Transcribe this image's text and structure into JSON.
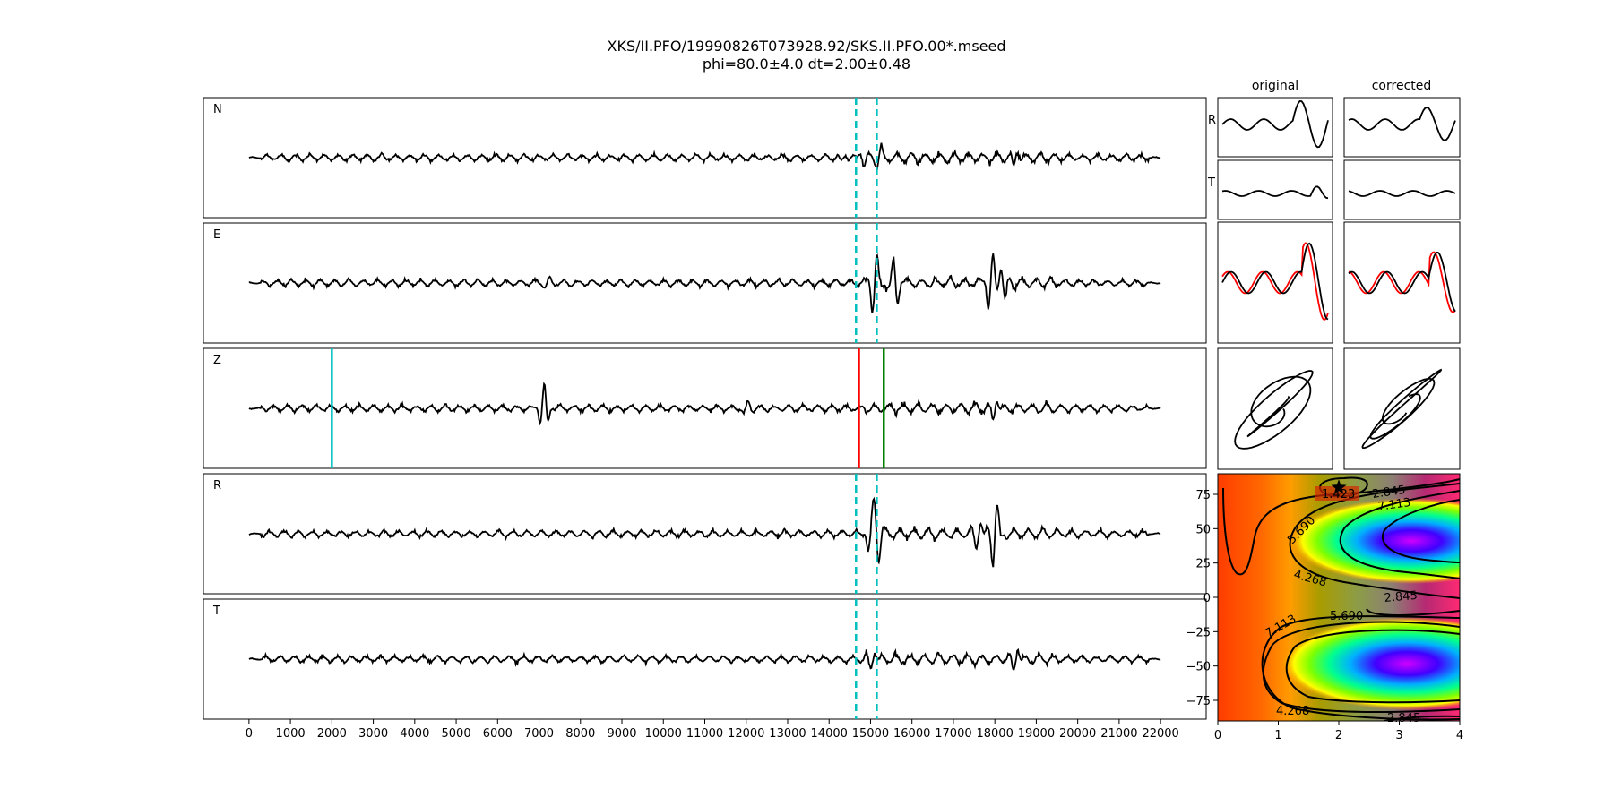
{
  "chart_data": {
    "type": "line",
    "title": "XKS/II.PFO/19990826T073928.92/SKS.II.PFO.00*.mseed",
    "subtitle": "phi=80.0±4.0 dt=2.00±0.48",
    "traces": [
      {
        "name": "N",
        "events": [
          {
            "t": 14350,
            "amp": 0.35
          },
          {
            "t": 14800,
            "amp": -0.5
          },
          {
            "t": 15200,
            "amp": 0.5
          },
          {
            "t": 18500,
            "amp": 0.6
          }
        ]
      },
      {
        "name": "E",
        "events": [
          {
            "t": 7200,
            "amp": 0.4
          },
          {
            "t": 15100,
            "amp": 1.6
          },
          {
            "t": 15600,
            "amp": -1.2
          },
          {
            "t": 17900,
            "amp": 1.4
          },
          {
            "t": 18200,
            "amp": -1.0
          }
        ]
      },
      {
        "name": "Z",
        "events": [
          {
            "t": 7100,
            "amp": 1.5
          },
          {
            "t": 7150,
            "amp": -1.6
          },
          {
            "t": 12000,
            "amp": 0.6
          },
          {
            "t": 18000,
            "amp": 0.7
          }
        ]
      },
      {
        "name": "R",
        "events": [
          {
            "t": 15000,
            "amp": 1.1
          },
          {
            "t": 15150,
            "amp": -1.5
          },
          {
            "t": 18000,
            "amp": 1.7
          },
          {
            "t": 17600,
            "amp": 0.8
          }
        ]
      },
      {
        "name": "T",
        "events": [
          {
            "t": 15050,
            "amp": 0.6
          },
          {
            "t": 18500,
            "amp": 0.7
          }
        ]
      }
    ],
    "time_range": [
      0,
      22000
    ],
    "xlim": [
      -1100,
      23100
    ],
    "xticks": [
      0,
      1000,
      2000,
      3000,
      4000,
      5000,
      6000,
      7000,
      8000,
      9000,
      10000,
      11000,
      12000,
      13000,
      14000,
      15000,
      16000,
      17000,
      18000,
      19000,
      20000,
      21000,
      22000
    ],
    "window_lines": [
      14650,
      15150
    ],
    "picks": [
      {
        "t": 2000,
        "color": "#00bfbf"
      },
      {
        "t": 14720,
        "color": "#ff0000"
      },
      {
        "t": 15320,
        "color": "#008000"
      }
    ],
    "small_panels": {
      "column_titles": [
        "original",
        "corrected"
      ],
      "row_labels": [
        "R",
        "T"
      ]
    },
    "grid": {
      "xlim": [
        0,
        4
      ],
      "ylim": [
        -90,
        90
      ],
      "xticks": [
        0,
        1,
        2,
        3,
        4
      ],
      "yticks": [
        75,
        50,
        25,
        0,
        -25,
        -50,
        -75
      ],
      "contour_labels": [
        "1.423",
        "2.845",
        "4.268",
        "5.690",
        "7.113"
      ],
      "best": {
        "dt": 2.0,
        "phi": 80.0
      }
    },
    "colors": {
      "trace": "#000000",
      "window": "#00bfbf",
      "overlay": "#ff0000"
    }
  }
}
